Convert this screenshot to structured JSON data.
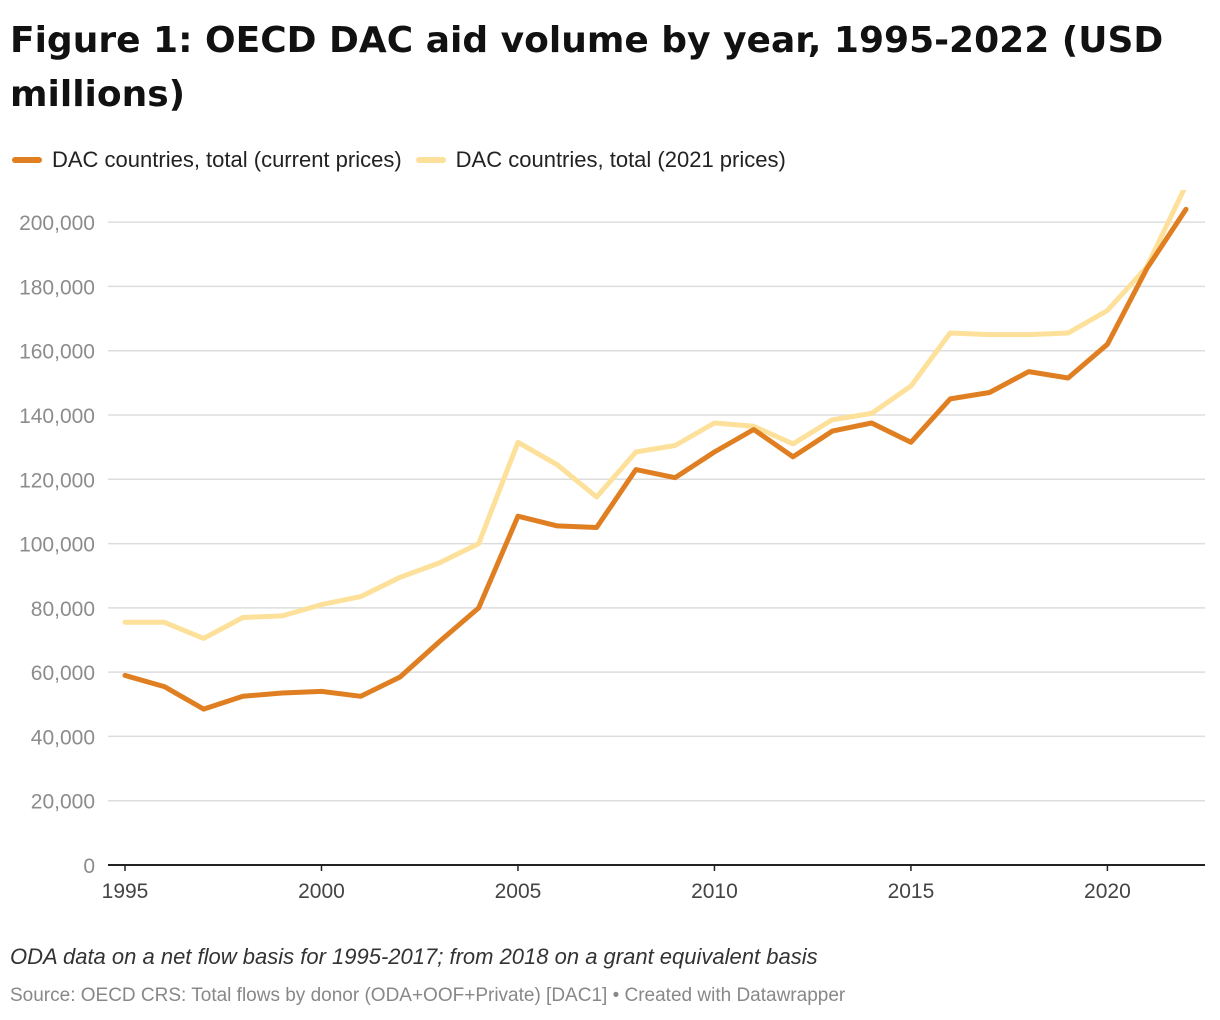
{
  "title": "Figure 1: OECD DAC aid volume by year, 1995-2022 (USD millions)",
  "note": "ODA data on a net flow basis for 1995-2017; from 2018 on a grant equivalent basis",
  "source": "Source: OECD CRS: Total flows by donor (ODA+OOF+Private) [DAC1] • Created with Datawrapper",
  "colors": {
    "current": "#e07f22",
    "constant": "#fde09a",
    "grid": "#dddddd",
    "axis": "#222222",
    "tick_label": "#8c8c8c"
  },
  "chart_data": {
    "type": "line",
    "title": "Figure 1: OECD DAC aid volume by year, 1995-2022 (USD millions)",
    "xlabel": "",
    "ylabel": "",
    "x": [
      1995,
      1996,
      1997,
      1998,
      1999,
      2000,
      2001,
      2002,
      2003,
      2004,
      2005,
      2006,
      2007,
      2008,
      2009,
      2010,
      2011,
      2012,
      2013,
      2014,
      2015,
      2016,
      2017,
      2018,
      2019,
      2020,
      2021,
      2022
    ],
    "xlim": [
      1995,
      2022
    ],
    "ylim": [
      0,
      210000
    ],
    "x_ticks": [
      {
        "value": 1995,
        "label": "1995"
      },
      {
        "value": 2000,
        "label": "2000"
      },
      {
        "value": 2005,
        "label": "2005"
      },
      {
        "value": 2010,
        "label": "2010"
      },
      {
        "value": 2015,
        "label": "2015"
      },
      {
        "value": 2020,
        "label": "2020"
      }
    ],
    "y_ticks": [
      {
        "value": 0,
        "label": "0"
      },
      {
        "value": 20000,
        "label": "20,000"
      },
      {
        "value": 40000,
        "label": "40,000"
      },
      {
        "value": 60000,
        "label": "60,000"
      },
      {
        "value": 80000,
        "label": "80,000"
      },
      {
        "value": 100000,
        "label": "100,000"
      },
      {
        "value": 120000,
        "label": "120,000"
      },
      {
        "value": 140000,
        "label": "140,000"
      },
      {
        "value": 160000,
        "label": "160,000"
      },
      {
        "value": 180000,
        "label": "180,000"
      },
      {
        "value": 200000,
        "label": "200,000"
      }
    ],
    "grid": true,
    "legend_position": "top-left",
    "series": [
      {
        "key": "constant",
        "name": "DAC countries, total (2021 prices)",
        "color": "#fde09a",
        "values": [
          75500,
          75500,
          70500,
          77000,
          77500,
          81000,
          83500,
          89500,
          94000,
          100000,
          131500,
          124500,
          114500,
          128500,
          130500,
          137500,
          136500,
          131000,
          138500,
          140500,
          149000,
          165500,
          165000,
          165000,
          165500,
          172500,
          186000,
          211500
        ]
      },
      {
        "key": "current",
        "name": "DAC countries, total (current prices)",
        "color": "#e07f22",
        "values": [
          59000,
          55500,
          48500,
          52500,
          53500,
          54000,
          52500,
          58500,
          69500,
          80000,
          108500,
          105500,
          105000,
          123000,
          120500,
          128500,
          135500,
          127000,
          135000,
          137500,
          131500,
          145000,
          147000,
          153500,
          151500,
          162000,
          185500,
          204000
        ]
      }
    ]
  }
}
